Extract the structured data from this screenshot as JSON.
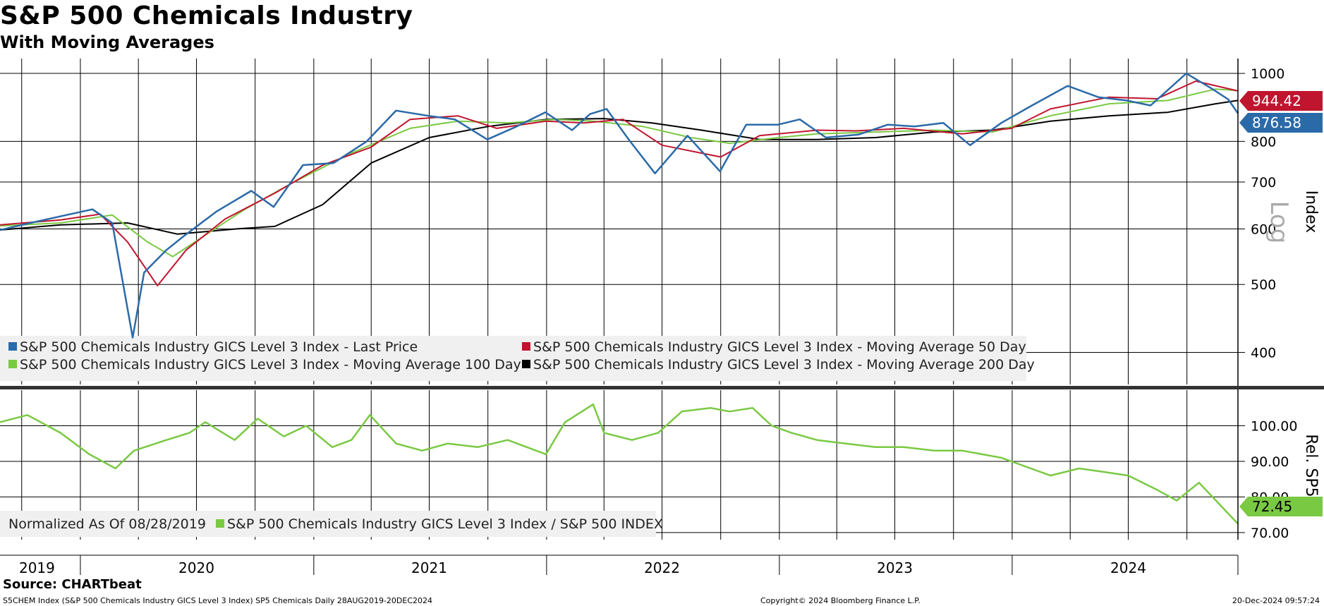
{
  "header": {
    "title": "S&P 500 Chemicals Industry",
    "subtitle": "With Moving Averages"
  },
  "footer": {
    "source": "Source: CHARTbeat",
    "description": "S5CHEM Index (S&P 500 Chemicals Industry GICS Level 3 Index) SP5 Chemicals  Daily 28AUG2019-20DEC2024",
    "copyright": "Copyright© 2024 Bloomberg Finance L.P.",
    "timestamp": "20-Dec-2024 09:57:24"
  },
  "chart_data": [
    {
      "type": "line",
      "panel": "top",
      "scale": "log",
      "ylabel": "Index",
      "scale_label": "Log",
      "ylim": [
        360,
        1050
      ],
      "yticks": [
        400,
        500,
        600,
        700,
        800,
        1000
      ],
      "xlim": [
        "2019-08-28",
        "2024-12-20"
      ],
      "x_labels": [
        "2019",
        "2020",
        "2021",
        "2022",
        "2023",
        "2024"
      ],
      "legend": {
        "placement": "bottom-left",
        "entries": [
          "S&P 500 Chemicals Industry GICS Level 3 Index - Last Price",
          "S&P 500 Chemicals Industry GICS Level 3 Index - Moving Average 50 Day",
          "S&P 500 Chemicals Industry GICS Level 3 Index - Moving Average 100 Day",
          "S&P 500 Chemicals Industry GICS Level 3 Index - Moving Average 200 Day"
        ]
      },
      "last_value_labels": [
        {
          "text": "944.42",
          "color": "#c0152f"
        },
        {
          "text": "876.58",
          "color": "#2b6aa8"
        }
      ],
      "series": [
        {
          "name": "Last Price",
          "color": "#2b6aa8",
          "x": [
            "2019-08-28",
            "2019-10-15",
            "2019-12-10",
            "2020-01-20",
            "2020-02-20",
            "2020-03-23",
            "2020-04-10",
            "2020-05-15",
            "2020-06-10",
            "2020-08-01",
            "2020-09-25",
            "2020-10-30",
            "2020-12-15",
            "2021-02-01",
            "2021-03-25",
            "2021-05-10",
            "2021-06-30",
            "2021-08-10",
            "2021-09-30",
            "2021-11-15",
            "2021-12-30",
            "2022-02-10",
            "2022-03-10",
            "2022-04-05",
            "2022-05-12",
            "2022-06-20",
            "2022-08-10",
            "2022-09-30",
            "2022-11-10",
            "2022-12-30",
            "2023-02-02",
            "2023-03-15",
            "2023-05-05",
            "2023-06-20",
            "2023-08-01",
            "2023-09-15",
            "2023-10-27",
            "2023-12-15",
            "2024-02-01",
            "2024-03-28",
            "2024-05-15",
            "2024-06-28",
            "2024-08-05",
            "2024-09-30",
            "2024-11-10",
            "2024-12-05",
            "2024-12-20"
          ],
          "values": [
            598,
            612,
            628,
            640,
            612,
            420,
            520,
            560,
            585,
            635,
            680,
            645,
            740,
            745,
            800,
            885,
            870,
            860,
            805,
            840,
            880,
            830,
            875,
            890,
            800,
            720,
            815,
            725,
            845,
            845,
            860,
            810,
            818,
            845,
            840,
            850,
            790,
            850,
            900,
            960,
            925,
            915,
            900,
            1000,
            950,
            918,
            877
          ]
        },
        {
          "name": "Moving Average 50 Day",
          "color": "#c0152f",
          "x": [
            "2019-08-28",
            "2019-12-01",
            "2020-02-01",
            "2020-03-15",
            "2020-05-01",
            "2020-06-15",
            "2020-08-15",
            "2020-11-01",
            "2021-01-15",
            "2021-04-01",
            "2021-06-01",
            "2021-08-15",
            "2021-10-15",
            "2021-12-31",
            "2022-03-01",
            "2022-05-01",
            "2022-07-01",
            "2022-10-01",
            "2022-12-01",
            "2023-03-01",
            "2023-05-01",
            "2023-07-15",
            "2023-10-15",
            "2023-12-31",
            "2024-03-01",
            "2024-06-01",
            "2024-08-15",
            "2024-10-15",
            "2024-12-20"
          ],
          "values": [
            608,
            618,
            630,
            575,
            498,
            560,
            620,
            675,
            740,
            785,
            860,
            870,
            835,
            855,
            850,
            860,
            790,
            760,
            815,
            830,
            828,
            835,
            820,
            835,
            890,
            925,
            920,
            975,
            944
          ]
        },
        {
          "name": "Moving Average 100 Day",
          "color": "#7ac943",
          "x": [
            "2019-08-28",
            "2019-12-01",
            "2020-02-20",
            "2020-04-15",
            "2020-05-25",
            "2020-07-15",
            "2020-09-15",
            "2020-12-01",
            "2021-03-01",
            "2021-06-01",
            "2021-08-15",
            "2021-11-01",
            "2022-01-15",
            "2022-03-15",
            "2022-06-01",
            "2022-08-15",
            "2022-10-15",
            "2022-12-31",
            "2023-03-01",
            "2023-06-01",
            "2023-09-01",
            "2023-12-01",
            "2024-03-01",
            "2024-06-01",
            "2024-09-01",
            "2024-11-15",
            "2024-12-20"
          ],
          "values": [
            606,
            612,
            628,
            575,
            548,
            588,
            640,
            700,
            770,
            835,
            855,
            850,
            860,
            855,
            840,
            810,
            795,
            810,
            820,
            825,
            830,
            825,
            870,
            905,
            915,
            950,
            945
          ]
        },
        {
          "name": "Moving Average 200 Day",
          "color": "#000000",
          "x": [
            "2019-08-28",
            "2019-12-01",
            "2020-03-15",
            "2020-06-01",
            "2020-09-01",
            "2020-11-01",
            "2021-01-15",
            "2021-04-01",
            "2021-07-01",
            "2021-10-01",
            "2022-01-01",
            "2022-04-01",
            "2022-06-15",
            "2022-09-01",
            "2022-12-01",
            "2023-03-01",
            "2023-06-01",
            "2023-09-01",
            "2023-12-01",
            "2024-03-01",
            "2024-06-01",
            "2024-09-01",
            "2024-11-15",
            "2024-12-20"
          ],
          "values": [
            598,
            608,
            612,
            590,
            600,
            605,
            650,
            745,
            810,
            840,
            860,
            862,
            850,
            830,
            805,
            805,
            810,
            825,
            830,
            855,
            870,
            880,
            905,
            915
          ]
        }
      ]
    },
    {
      "type": "line",
      "panel": "bottom",
      "ylabel": "Rel. SP5",
      "ylim": [
        68,
        110
      ],
      "yticks": [
        70.0,
        80.0,
        90.0,
        100.0
      ],
      "ytick_labels": [
        "70.00",
        "80.00",
        "90.00",
        "100.00"
      ],
      "legend": {
        "placement": "bottom-left",
        "entries": [
          "Normalized As Of 08/28/2019",
          "S&P 500 Chemicals Industry GICS Level 3 Index / S&P 500 INDEX"
        ]
      },
      "last_value_labels": [
        {
          "text": "72.45",
          "color": "#7ac943"
        }
      ],
      "series": [
        {
          "name": "S&P 500 Chemicals Industry GICS Level 3 Index / S&P 500 INDEX",
          "color": "#7ac943",
          "x": [
            "2019-08-28",
            "2019-10-10",
            "2019-12-01",
            "2020-01-15",
            "2020-02-25",
            "2020-03-25",
            "2020-05-15",
            "2020-06-20",
            "2020-07-15",
            "2020-08-30",
            "2020-10-05",
            "2020-11-15",
            "2020-12-20",
            "2021-01-30",
            "2021-03-01",
            "2021-03-30",
            "2021-05-10",
            "2021-06-20",
            "2021-07-30",
            "2021-09-15",
            "2021-11-01",
            "2021-12-31",
            "2022-01-30",
            "2022-03-15",
            "2022-04-01",
            "2022-05-15",
            "2022-06-25",
            "2022-08-01",
            "2022-09-15",
            "2022-10-15",
            "2022-11-20",
            "2022-12-20",
            "2023-01-20",
            "2023-03-01",
            "2023-04-15",
            "2023-06-01",
            "2023-07-15",
            "2023-09-01",
            "2023-10-15",
            "2023-12-15",
            "2024-01-15",
            "2024-03-01",
            "2024-04-15",
            "2024-05-25",
            "2024-07-01",
            "2024-08-15",
            "2024-09-15",
            "2024-10-20",
            "2024-12-20"
          ],
          "values": [
            101,
            103,
            98,
            92,
            88,
            93,
            96,
            98,
            101,
            96,
            102,
            97,
            100,
            94,
            96,
            103,
            95,
            93,
            95,
            94,
            96,
            92,
            101,
            106,
            98,
            96,
            98,
            104,
            105,
            104,
            105,
            100,
            98,
            96,
            95,
            94,
            94,
            93,
            93,
            91,
            89,
            86,
            88,
            87,
            86,
            82,
            79,
            84,
            72.45
          ]
        }
      ]
    }
  ]
}
